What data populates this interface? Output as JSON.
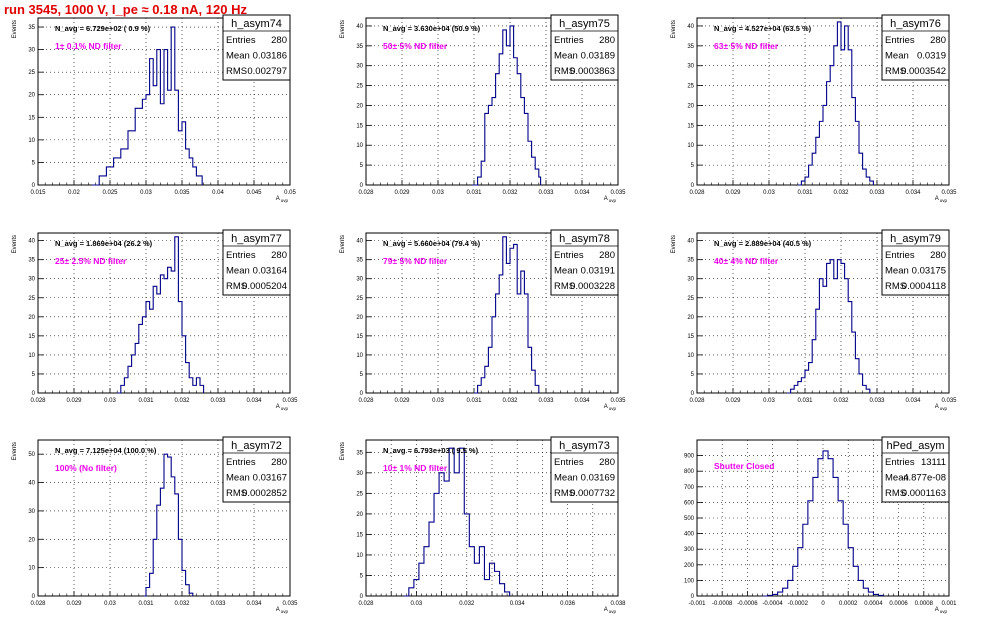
{
  "page_title": "run 3545,  1000 V, I_pe ≈ 0.18 nA, 120 Hz",
  "colors": {
    "hist": "#000088",
    "annot": "#ee00ee",
    "title": "#e00000"
  },
  "chart_data": [
    {
      "type": "histogram",
      "name": "h_asym74",
      "navg": "N_avg = 6.729e+02 ( 0.9 %)",
      "filter": "1± 0.1% ND filter",
      "stats": {
        "entries": "280",
        "mean": "0.03186",
        "rms": "0.002797"
      },
      "xlabel": "A_uvp",
      "ylabel": "Events",
      "xlim": [
        0.015,
        0.05
      ],
      "ylim": [
        0,
        37
      ],
      "xticks": [
        0.015,
        0.02,
        0.025,
        0.03,
        0.035,
        0.04,
        0.045,
        0.05
      ],
      "xtick_labels": [
        "0.015",
        "0.02",
        "0.025",
        "0.03",
        "0.035",
        "0.04",
        "0.045",
        "0.05"
      ],
      "yticks": [
        0,
        5,
        10,
        15,
        20,
        25,
        30,
        35
      ],
      "bins": [
        [
          0.0225,
          0
        ],
        [
          0.0235,
          2
        ],
        [
          0.0245,
          4
        ],
        [
          0.0255,
          6
        ],
        [
          0.0265,
          8
        ],
        [
          0.0275,
          12
        ],
        [
          0.0285,
          17
        ],
        [
          0.0295,
          19
        ],
        [
          0.03,
          20
        ],
        [
          0.0305,
          28
        ],
        [
          0.031,
          22
        ],
        [
          0.0315,
          30
        ],
        [
          0.032,
          18
        ],
        [
          0.0325,
          30
        ],
        [
          0.033,
          21
        ],
        [
          0.0335,
          35
        ],
        [
          0.034,
          21
        ],
        [
          0.0345,
          12
        ],
        [
          0.035,
          14
        ],
        [
          0.0355,
          8
        ],
        [
          0.036,
          6
        ],
        [
          0.0365,
          4
        ],
        [
          0.037,
          2
        ],
        [
          0.0378,
          0
        ]
      ]
    },
    {
      "type": "histogram",
      "name": "h_asym75",
      "navg": "N_avg = 3.630e+04 (50.9 %)",
      "filter": "50± 5% ND filter",
      "stats": {
        "entries": "280",
        "mean": "0.03189",
        "rms": "0.0003863"
      },
      "xlabel": "A_uvp",
      "ylabel": "Events",
      "xlim": [
        0.028,
        0.035
      ],
      "ylim": [
        0,
        42
      ],
      "xticks": [
        0.028,
        0.029,
        0.03,
        0.031,
        0.032,
        0.033,
        0.034,
        0.035
      ],
      "xtick_labels": [
        "0.028",
        "0.029",
        "0.03",
        "0.031",
        "0.032",
        "0.033",
        "0.034",
        "0.035"
      ],
      "yticks": [
        0,
        5,
        10,
        15,
        20,
        25,
        30,
        35,
        40
      ],
      "bins": [
        [
          0.03095,
          0
        ],
        [
          0.0311,
          2
        ],
        [
          0.0312,
          6
        ],
        [
          0.0313,
          18
        ],
        [
          0.0314,
          20
        ],
        [
          0.0315,
          22
        ],
        [
          0.0316,
          28
        ],
        [
          0.0317,
          33
        ],
        [
          0.0318,
          39
        ],
        [
          0.0319,
          35
        ],
        [
          0.032,
          40
        ],
        [
          0.0321,
          32
        ],
        [
          0.0322,
          28
        ],
        [
          0.0323,
          22
        ],
        [
          0.0324,
          18
        ],
        [
          0.0325,
          11
        ],
        [
          0.0326,
          7
        ],
        [
          0.0327,
          4
        ],
        [
          0.0328,
          2
        ],
        [
          0.03285,
          0
        ]
      ]
    },
    {
      "type": "histogram",
      "name": "h_asym76",
      "navg": "N_avg = 4.527e+04 (63.5 %)",
      "filter": "63± 5% ND filter",
      "stats": {
        "entries": "280",
        "mean": "0.0319",
        "rms": "0.0003542"
      },
      "xlabel": "A_uvp",
      "ylabel": "Events",
      "xlim": [
        0.028,
        0.035
      ],
      "ylim": [
        0,
        42
      ],
      "xticks": [
        0.028,
        0.029,
        0.03,
        0.031,
        0.032,
        0.033,
        0.034,
        0.035
      ],
      "xtick_labels": [
        "0.028",
        "0.029",
        "0.03",
        "0.031",
        "0.032",
        "0.033",
        "0.034",
        "0.035"
      ],
      "yticks": [
        0,
        5,
        10,
        15,
        20,
        25,
        30,
        35,
        40
      ],
      "bins": [
        [
          0.0308,
          0
        ],
        [
          0.0309,
          1
        ],
        [
          0.031,
          2
        ],
        [
          0.0311,
          5
        ],
        [
          0.0312,
          8
        ],
        [
          0.0313,
          12
        ],
        [
          0.0314,
          16
        ],
        [
          0.0315,
          20
        ],
        [
          0.0316,
          26
        ],
        [
          0.0317,
          30
        ],
        [
          0.0318,
          35
        ],
        [
          0.0319,
          41
        ],
        [
          0.032,
          34
        ],
        [
          0.0321,
          40
        ],
        [
          0.0322,
          34
        ],
        [
          0.0323,
          22
        ],
        [
          0.0324,
          16
        ],
        [
          0.0325,
          8
        ],
        [
          0.0326,
          4
        ],
        [
          0.0327,
          2
        ],
        [
          0.0328,
          1
        ],
        [
          0.0329,
          0
        ]
      ]
    },
    {
      "type": "histogram",
      "name": "h_asym77",
      "navg": "N_avg = 1.869e+04 (26.2 %)",
      "filter": "25± 2.5% ND filter",
      "stats": {
        "entries": "280",
        "mean": "0.03164",
        "rms": "0.0005204"
      },
      "xlabel": "A_uvp",
      "ylabel": "Events",
      "xlim": [
        0.028,
        0.035
      ],
      "ylim": [
        0,
        42
      ],
      "xticks": [
        0.028,
        0.029,
        0.03,
        0.031,
        0.032,
        0.033,
        0.034,
        0.035
      ],
      "xtick_labels": [
        "0.028",
        "0.029",
        "0.03",
        "0.031",
        "0.032",
        "0.033",
        "0.034",
        "0.035"
      ],
      "yticks": [
        0,
        5,
        10,
        15,
        20,
        25,
        30,
        35,
        40
      ],
      "bins": [
        [
          0.0302,
          0
        ],
        [
          0.0303,
          2
        ],
        [
          0.0304,
          4
        ],
        [
          0.0305,
          7
        ],
        [
          0.0306,
          10
        ],
        [
          0.0307,
          13
        ],
        [
          0.0308,
          18
        ],
        [
          0.0309,
          20
        ],
        [
          0.031,
          24
        ],
        [
          0.0311,
          22
        ],
        [
          0.0312,
          28
        ],
        [
          0.0313,
          26
        ],
        [
          0.0314,
          31
        ],
        [
          0.0315,
          30
        ],
        [
          0.0316,
          33
        ],
        [
          0.0317,
          32
        ],
        [
          0.0318,
          41
        ],
        [
          0.0319,
          24
        ],
        [
          0.032,
          15
        ],
        [
          0.0321,
          8
        ],
        [
          0.0322,
          4
        ],
        [
          0.0323,
          2
        ],
        [
          0.0324,
          4
        ],
        [
          0.0325,
          2
        ],
        [
          0.0326,
          0
        ]
      ]
    },
    {
      "type": "histogram",
      "name": "h_asym78",
      "navg": "N_avg = 5.660e+04 (79.4 %)",
      "filter": "79± 5% ND filter",
      "stats": {
        "entries": "280",
        "mean": "0.03191",
        "rms": "0.0003228"
      },
      "xlabel": "A_uvp",
      "ylabel": "Events",
      "xlim": [
        0.028,
        0.035
      ],
      "ylim": [
        0,
        42
      ],
      "xticks": [
        0.028,
        0.029,
        0.03,
        0.031,
        0.032,
        0.033,
        0.034,
        0.035
      ],
      "xtick_labels": [
        "0.028",
        "0.029",
        "0.03",
        "0.031",
        "0.032",
        "0.033",
        "0.034",
        "0.035"
      ],
      "yticks": [
        0,
        5,
        10,
        15,
        20,
        25,
        30,
        35,
        40
      ],
      "bins": [
        [
          0.031,
          0
        ],
        [
          0.0311,
          2
        ],
        [
          0.0312,
          4
        ],
        [
          0.0313,
          7
        ],
        [
          0.0314,
          12
        ],
        [
          0.0315,
          20
        ],
        [
          0.0316,
          26
        ],
        [
          0.0317,
          31
        ],
        [
          0.0318,
          41
        ],
        [
          0.0319,
          34
        ],
        [
          0.032,
          38
        ],
        [
          0.0321,
          39
        ],
        [
          0.0322,
          26
        ],
        [
          0.0323,
          32
        ],
        [
          0.0324,
          26
        ],
        [
          0.0325,
          12
        ],
        [
          0.0326,
          6
        ],
        [
          0.0327,
          2
        ],
        [
          0.0328,
          0
        ]
      ]
    },
    {
      "type": "histogram",
      "name": "h_asym79",
      "navg": "N_avg = 2.889e+04 (40.5 %)",
      "filter": "40± 4% ND filter",
      "stats": {
        "entries": "280",
        "mean": "0.03175",
        "rms": "0.0004118"
      },
      "xlabel": "A_uvp",
      "ylabel": "Events",
      "xlim": [
        0.028,
        0.035
      ],
      "ylim": [
        0,
        42
      ],
      "xticks": [
        0.028,
        0.029,
        0.03,
        0.031,
        0.032,
        0.033,
        0.034,
        0.035
      ],
      "xtick_labels": [
        "0.028",
        "0.029",
        "0.03",
        "0.031",
        "0.032",
        "0.033",
        "0.034",
        "0.035"
      ],
      "yticks": [
        0,
        5,
        10,
        15,
        20,
        25,
        30,
        35,
        40
      ],
      "bins": [
        [
          0.0305,
          0
        ],
        [
          0.0306,
          1
        ],
        [
          0.0307,
          2
        ],
        [
          0.0308,
          3
        ],
        [
          0.0309,
          4
        ],
        [
          0.031,
          6
        ],
        [
          0.0311,
          8
        ],
        [
          0.0312,
          14
        ],
        [
          0.0313,
          22
        ],
        [
          0.0314,
          30
        ],
        [
          0.0315,
          28
        ],
        [
          0.0316,
          34
        ],
        [
          0.0317,
          35
        ],
        [
          0.0318,
          30
        ],
        [
          0.0319,
          35
        ],
        [
          0.032,
          34
        ],
        [
          0.0321,
          30
        ],
        [
          0.0322,
          24
        ],
        [
          0.0323,
          16
        ],
        [
          0.0324,
          9
        ],
        [
          0.0325,
          5
        ],
        [
          0.0326,
          2
        ],
        [
          0.0327,
          1
        ],
        [
          0.0328,
          0
        ]
      ]
    },
    {
      "type": "histogram",
      "name": "h_asym72",
      "navg": "N_avg = 7.125e+04 (100.0 %)",
      "filter": "100% (No filter)",
      "stats": {
        "entries": "280",
        "mean": "0.03167",
        "rms": "0.0002852"
      },
      "xlabel": "A_uvp",
      "ylabel": "Events",
      "xlim": [
        0.028,
        0.035
      ],
      "ylim": [
        0,
        55
      ],
      "xticks": [
        0.028,
        0.029,
        0.03,
        0.031,
        0.032,
        0.033,
        0.034,
        0.035
      ],
      "xtick_labels": [
        "0.028",
        "0.029",
        "0.03",
        "0.031",
        "0.032",
        "0.033",
        "0.034",
        "0.035"
      ],
      "yticks": [
        0,
        10,
        20,
        30,
        40,
        50
      ],
      "bins": [
        [
          0.03095,
          0
        ],
        [
          0.031,
          3
        ],
        [
          0.0311,
          8
        ],
        [
          0.0312,
          20
        ],
        [
          0.0313,
          32
        ],
        [
          0.0314,
          38
        ],
        [
          0.0315,
          50
        ],
        [
          0.0316,
          49
        ],
        [
          0.0317,
          42
        ],
        [
          0.0318,
          36
        ],
        [
          0.0319,
          20
        ],
        [
          0.032,
          9
        ],
        [
          0.0321,
          4
        ],
        [
          0.0322,
          1
        ],
        [
          0.0323,
          0
        ]
      ]
    },
    {
      "type": "histogram",
      "name": "h_asym73",
      "navg": "N_avg = 6.793e+03 ( 9.5 %)",
      "filter": "10± 1% ND filter",
      "stats": {
        "entries": "280",
        "mean": "0.03169",
        "rms": "0.0007732"
      },
      "xlabel": "A_uvp",
      "ylabel": "Events",
      "xlim": [
        0.028,
        0.038
      ],
      "ylim": [
        0,
        38
      ],
      "xticks": [
        0.028,
        0.029,
        0.03,
        0.031,
        0.032,
        0.033,
        0.034,
        0.035,
        0.036,
        0.037,
        0.038
      ],
      "xtick_labels": [
        "0.028",
        "",
        "0.03",
        "",
        "0.032",
        "",
        "0.034",
        "",
        "0.036",
        "",
        "0.038"
      ],
      "yticks": [
        0,
        5,
        10,
        15,
        20,
        25,
        30,
        35
      ],
      "bins": [
        [
          0.0295,
          0
        ],
        [
          0.0297,
          2
        ],
        [
          0.0299,
          4
        ],
        [
          0.0301,
          8
        ],
        [
          0.0303,
          12
        ],
        [
          0.0305,
          18
        ],
        [
          0.0307,
          25
        ],
        [
          0.0309,
          30
        ],
        [
          0.0311,
          28
        ],
        [
          0.0313,
          36
        ],
        [
          0.0315,
          30
        ],
        [
          0.0317,
          36
        ],
        [
          0.0319,
          20
        ],
        [
          0.0321,
          12
        ],
        [
          0.0323,
          8
        ],
        [
          0.0325,
          12
        ],
        [
          0.0327,
          4
        ],
        [
          0.0329,
          8
        ],
        [
          0.0331,
          6
        ],
        [
          0.0333,
          3
        ],
        [
          0.0335,
          1
        ],
        [
          0.0337,
          0
        ]
      ]
    },
    {
      "type": "histogram",
      "name": "hPed_asym",
      "navg": "",
      "filter": "Shutter Closed",
      "stats": {
        "entries": "13111",
        "mean": "-4.877e-08",
        "rms": "0.0001163"
      },
      "xlabel": "A_uvp",
      "ylabel": "",
      "xlim": [
        -0.001,
        0.001
      ],
      "ylim": [
        0,
        1000
      ],
      "xticks": [
        -0.001,
        -0.0008,
        -0.0006,
        -0.0004,
        -0.0002,
        0,
        0.0002,
        0.0004,
        0.0006,
        0.0008,
        0.001
      ],
      "xtick_labels": [
        "-0.001",
        "-0.0008",
        "-0.0006",
        "-0.0004",
        "-0.0002",
        "0",
        "0.0002",
        "0.0004",
        "0.0006",
        "0.0008",
        "0.001"
      ],
      "yticks": [
        0,
        100,
        200,
        300,
        400,
        500,
        600,
        700,
        800,
        900
      ],
      "bins": [
        [
          -0.00048,
          0
        ],
        [
          -0.00044,
          4
        ],
        [
          -0.0004,
          10
        ],
        [
          -0.00036,
          25
        ],
        [
          -0.00032,
          50
        ],
        [
          -0.00028,
          100
        ],
        [
          -0.00024,
          190
        ],
        [
          -0.0002,
          310
        ],
        [
          -0.00016,
          460
        ],
        [
          -0.00012,
          610
        ],
        [
          -8e-05,
          760
        ],
        [
          -4e-05,
          880
        ],
        [
          0,
          930
        ],
        [
          4e-05,
          880
        ],
        [
          8e-05,
          760
        ],
        [
          0.00012,
          610
        ],
        [
          0.00016,
          460
        ],
        [
          0.0002,
          310
        ],
        [
          0.00024,
          190
        ],
        [
          0.00028,
          100
        ],
        [
          0.00032,
          50
        ],
        [
          0.00036,
          25
        ],
        [
          0.0004,
          10
        ],
        [
          0.00044,
          4
        ],
        [
          0.00048,
          0
        ]
      ]
    }
  ]
}
